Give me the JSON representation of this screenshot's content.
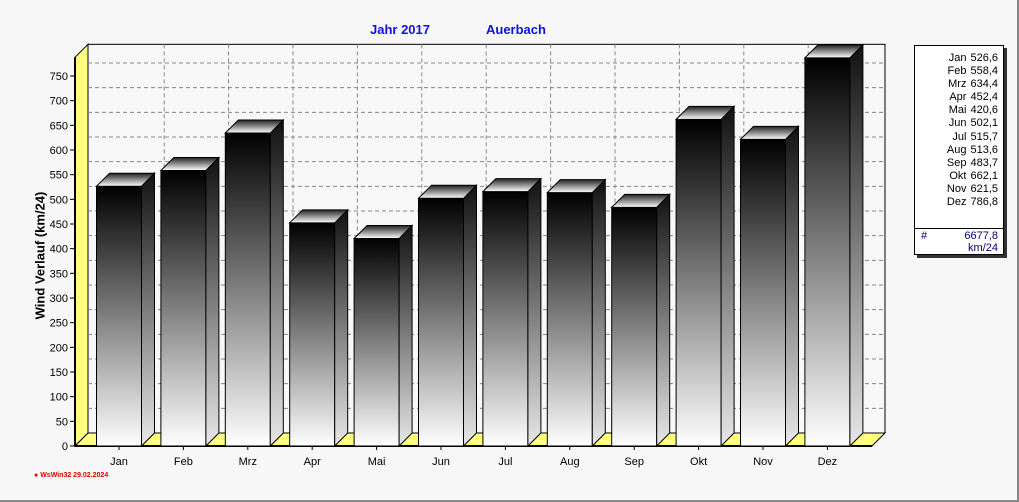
{
  "chart_data": {
    "type": "bar",
    "title_year": "Jahr  2017",
    "title_location": "Auerbach",
    "ylabel": "Wind Verlauf  (km/24)",
    "xlabel": "",
    "ylim": [
      0,
      800
    ],
    "yticks": [
      0,
      50,
      100,
      150,
      200,
      250,
      300,
      350,
      400,
      450,
      500,
      550,
      600,
      650,
      700,
      750
    ],
    "grid": true,
    "legend_position": "right",
    "categories": [
      "Jan",
      "Feb",
      "Mrz",
      "Apr",
      "Mai",
      "Jun",
      "Jul",
      "Aug",
      "Sep",
      "Okt",
      "Nov",
      "Dez"
    ],
    "values": [
      526.6,
      558.4,
      634.4,
      452.4,
      420.6,
      502.1,
      515.7,
      513.6,
      483.7,
      662.1,
      621.5,
      786.8
    ],
    "value_labels": [
      "526,6",
      "558,4",
      "634,4",
      "452,4",
      "420,6",
      "502,1",
      "515,7",
      "513,6",
      "483,7",
      "662,1",
      "621,5",
      "786,8"
    ],
    "total_symbol": "#",
    "total": "6677,8",
    "total_unit": "km/24"
  },
  "footer": "WsWin32  29.02.2024",
  "colors": {
    "title": "#1010e0",
    "wall": "#ffff80",
    "footer": "#e00000",
    "total": "#000080"
  }
}
